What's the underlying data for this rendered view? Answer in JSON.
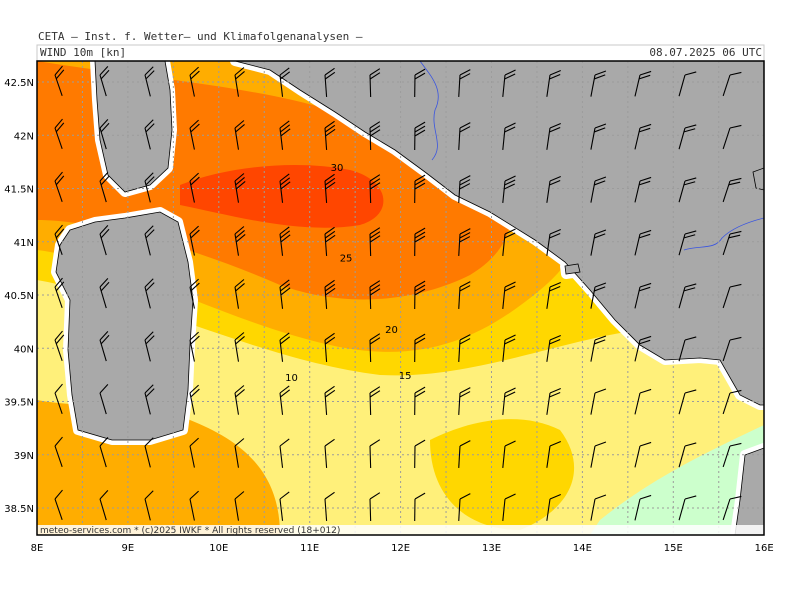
{
  "header": {
    "institute": "CETA — Inst. f. Wetter— und Klimafolgenanalysen —",
    "product": "WIND 10m [kn]",
    "valid_time": "08.07.2025 06 UTC"
  },
  "footer": {
    "credit": "meteo-services.com * (c)2025 IWKF * All rights reserved (18+012)"
  },
  "colors": {
    "land": "#a9a9a9",
    "coast": "#ffffff",
    "river": "#3a55e0",
    "grid": "#9c9c9c",
    "band_under_10": "#ccffcc",
    "band_10_15": "#fff07a",
    "band_15_20": "#ffd700",
    "band_20_25": "#ffad00",
    "band_25_30": "#ff7a00",
    "band_over_30": "#ff4600"
  },
  "axes": {
    "lon_labels": [
      "8E",
      "9E",
      "10E",
      "11E",
      "12E",
      "13E",
      "14E",
      "15E",
      "16E"
    ],
    "lat_labels": [
      "42.5N",
      "42N",
      "41.5N",
      "41N",
      "40.5N",
      "40N",
      "39.5N",
      "39N",
      "38.5N"
    ]
  },
  "contour_labels": [
    {
      "text": "30",
      "lon": 11.3,
      "lat": 41.7
    },
    {
      "text": "25",
      "lon": 11.4,
      "lat": 40.85
    },
    {
      "text": "20",
      "lon": 11.9,
      "lat": 40.18
    },
    {
      "text": "15",
      "lon": 12.05,
      "lat": 39.75
    },
    {
      "text": "10",
      "lon": 10.8,
      "lat": 39.73
    }
  ],
  "map_data": {
    "type": "wind_speed_field",
    "unit": "kn",
    "lon_range": [
      8,
      16
    ],
    "lat_range": [
      38.25,
      42.7
    ],
    "contour_levels": [
      10,
      15,
      20,
      25,
      30
    ],
    "speed_maximum": {
      "lon": 11.5,
      "lat": 41.35,
      "speed_kn": 32
    },
    "barb_grid_spacing_deg": 0.25
  }
}
